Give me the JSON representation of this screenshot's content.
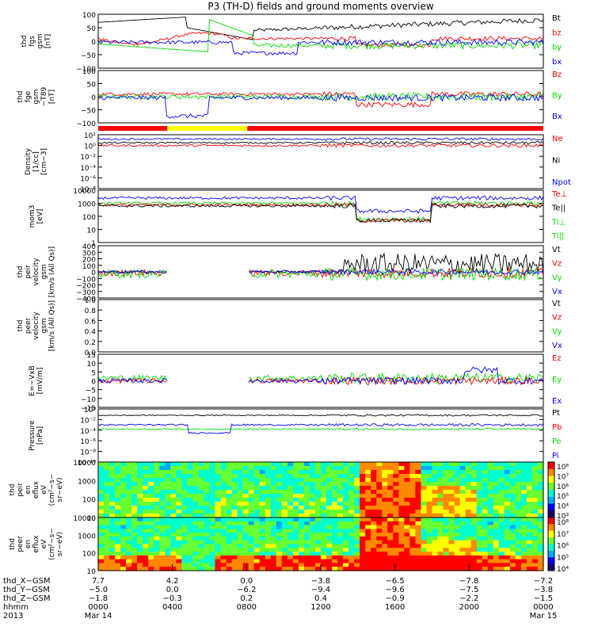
{
  "title": "P3 (TH-D) fields and ground moments overview",
  "colors": {
    "black": "#000000",
    "red": "#ff0000",
    "green": "#00dd00",
    "blue": "#0000ff",
    "yellow": "#ffff00"
  },
  "chart_data": [
    {
      "type": "line",
      "ylabel": [
        "thd",
        "fgs",
        "gsm",
        "[nT]"
      ],
      "yticks": [
        "100",
        "50",
        "0",
        "−50",
        "−100"
      ],
      "legend": [
        {
          "name": "Bt",
          "color": "black"
        },
        {
          "name": "bz",
          "color": "red"
        },
        {
          "name": "by",
          "color": "green"
        },
        {
          "name": "bx",
          "color": "blue"
        }
      ]
    },
    {
      "type": "line",
      "ylabel": [
        "thd",
        "fge",
        "gsm",
        "−T89",
        "[nT]"
      ],
      "yticks": [
        "100",
        "50",
        "0",
        "−50",
        "−100"
      ],
      "legend": [
        {
          "name": "Bz",
          "color": "red"
        },
        {
          "name": "By",
          "color": "green"
        },
        {
          "name": "Bx",
          "color": "blue"
        }
      ]
    },
    {
      "type": "line",
      "ylabel": [
        "Density",
        "[1/cc]",
        "[cm−3]"
      ],
      "yticks": [
        "10²",
        "10⁰",
        "10⁻²",
        "10⁻⁴",
        "10⁻⁶",
        "10⁻⁸"
      ],
      "legend": [
        {
          "name": "Ne",
          "color": "red"
        },
        {
          "name": "Ni",
          "color": "black"
        },
        {
          "name": "Npot",
          "color": "blue"
        }
      ]
    },
    {
      "type": "line",
      "ylabel": [
        "mom3",
        "[eV]"
      ],
      "yticks": [
        "10000",
        "1000",
        "100",
        "10",
        "1"
      ],
      "legend": [
        {
          "name": "Te⊥",
          "color": "red"
        },
        {
          "name": "Te||",
          "color": "black"
        },
        {
          "name": "Ti⊥",
          "color": "green"
        },
        {
          "name": "Ti||",
          "color": "green"
        }
      ]
    },
    {
      "type": "line",
      "ylabel": [
        "thd",
        "peir",
        "velocity",
        "gsm",
        "[km/s (All Qs)]"
      ],
      "yticks": [
        "400",
        "300",
        "200",
        "100",
        "0",
        "−100",
        "−200",
        "−300",
        "−400"
      ],
      "legend": [
        {
          "name": "Vt",
          "color": "black"
        },
        {
          "name": "Vz",
          "color": "red"
        },
        {
          "name": "Vy",
          "color": "green"
        },
        {
          "name": "Vx",
          "color": "blue"
        }
      ]
    },
    {
      "type": "line",
      "ylabel": [
        "thd",
        "peer",
        "velocity",
        "gsm",
        "[km/s (All Qs)]"
      ],
      "yticks": [
        "1.0",
        "0.8",
        "0.6",
        "0.4",
        "0.2",
        "0.0"
      ],
      "legend": [
        {
          "name": "Vt",
          "color": "black"
        },
        {
          "name": "Vz",
          "color": "red"
        },
        {
          "name": "Vy",
          "color": "green"
        },
        {
          "name": "Vx",
          "color": "blue"
        }
      ]
    },
    {
      "type": "line",
      "ylabel": [
        "E=−VxB",
        "[mV/m]"
      ],
      "yticks": [
        "15",
        "10",
        "5",
        "0",
        "−5",
        "−10",
        "−15"
      ],
      "legend": [
        {
          "name": "Ez",
          "color": "red"
        },
        {
          "name": "Ey",
          "color": "green"
        },
        {
          "name": "Ex",
          "color": "blue"
        }
      ]
    },
    {
      "type": "line",
      "ylabel": [
        "Pressure",
        "[nPa]"
      ],
      "yticks": [
        "10⁰",
        "10⁻²",
        "10⁻⁴",
        "10⁻⁶",
        "10⁻⁸",
        "10⁻¹⁰"
      ],
      "legend": [
        {
          "name": "Pt",
          "color": "black"
        },
        {
          "name": "Pb",
          "color": "red"
        },
        {
          "name": "Pe",
          "color": "green"
        },
        {
          "name": "Pi",
          "color": "blue"
        }
      ]
    },
    {
      "type": "heatmap",
      "ylabel": [
        "thd",
        "peir",
        "en",
        "eflux",
        "eV",
        "(cm²−s−",
        "sr−eV)"
      ],
      "yticks": [
        "10000",
        "1000",
        "100",
        "10"
      ],
      "colorbar": [
        "10⁸",
        "10⁷",
        "10⁶",
        "10⁵",
        "10⁴",
        "10³"
      ]
    },
    {
      "type": "heatmap",
      "ylabel": [
        "thd",
        "peer",
        "en",
        "eflux",
        "eV",
        "(cm²−s−",
        "sr−eV)"
      ],
      "yticks": [
        "10000",
        "1000",
        "100",
        "10"
      ],
      "colorbar": [
        "10⁸",
        "10⁷",
        "10⁶",
        "10⁵",
        "10⁴"
      ]
    }
  ],
  "xaxis": {
    "rows": [
      {
        "label": "thd_X−GSM",
        "values": [
          "7.7",
          "4.2",
          "0.0",
          "−3.8",
          "−6.5",
          "−7.8",
          "−7.2"
        ]
      },
      {
        "label": "thd_Y−GSM",
        "values": [
          "−5.0",
          "0.0",
          "−6.2",
          "−9.4",
          "−9.6",
          "−7.5",
          "−3.8"
        ]
      },
      {
        "label": "thd_Z−GSM",
        "values": [
          "−1.8",
          "−0.3",
          "0.2",
          "0.4",
          "−0.9",
          "−2.2",
          "−1.5"
        ]
      },
      {
        "label": "hhmm",
        "values": [
          "0000",
          "0400",
          "0800",
          "1200",
          "1600",
          "2000",
          "0000"
        ]
      },
      {
        "label": "2013",
        "values": [
          "Mar 14",
          "",
          "",
          "",
          "",
          "",
          "Mar 15"
        ]
      }
    ]
  }
}
